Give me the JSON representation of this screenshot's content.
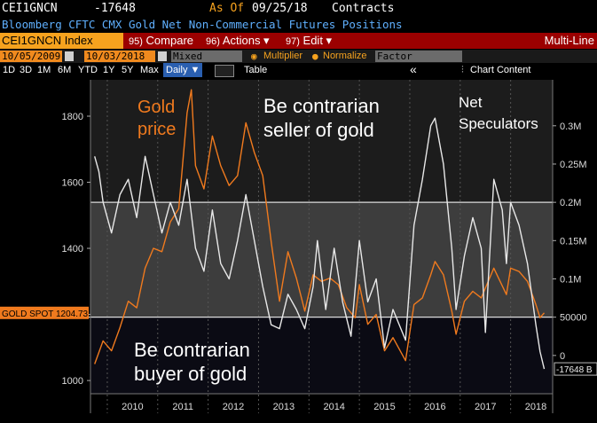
{
  "header": {
    "ticker": "CEI1GNCN",
    "last_value": "-17648",
    "as_of_label": "As Of",
    "as_of_date": "09/25/18",
    "units": "Contracts",
    "description": "Bloomberg CFTC CMX Gold Net Non-Commercial Futures Positions"
  },
  "menubar": {
    "index_label": "CEI1GNCN Index",
    "compare_num": "95)",
    "compare_label": "Compare",
    "actions_num": "96)",
    "actions_label": "Actions ▾",
    "edit_num": "97)",
    "edit_label": "Edit ▾",
    "multiline_label": "Multi-Line"
  },
  "controls": {
    "start_date": "10/05/2009",
    "end_date": "10/03/2018",
    "mode": "Mixed",
    "multiplier_label": "Multiplier",
    "normalize_label": "Normalize",
    "factor_placeholder": "Factor"
  },
  "chartbar": {
    "periods": [
      "1D",
      "3D",
      "1M",
      "6M",
      "YTD",
      "1Y",
      "5Y",
      "Max"
    ],
    "frequency": "Daily ▼",
    "table_label": "Table",
    "collapse_label": "«",
    "chart_content_label": "Chart Content"
  },
  "colors": {
    "gold_series": "#f07a1e",
    "net_spec_series": "#e8e8e8",
    "menubar_bg": "#9b0000",
    "ticker_box": "#f6a21e",
    "description_text": "#5fb0ff"
  },
  "annotations": {
    "gold_price_line1": "Gold",
    "gold_price_line2": "price",
    "seller_line1": "Be contrarian",
    "seller_line2": "seller of gold",
    "net_spec_line1": "Net",
    "net_spec_line2": "Speculators",
    "buyer_line1": "Be contrarian",
    "buyer_line2": "buyer of gold",
    "gold_spot_tag": "GOLD SPOT 1204.73",
    "net_spec_tag": "-17648 B"
  },
  "chart_data": {
    "type": "line",
    "x_ticks": [
      "2010",
      "2011",
      "2012",
      "2013",
      "2014",
      "2015",
      "2016",
      "2017",
      "2018"
    ],
    "left_axis": {
      "ticks": [
        1000,
        1200,
        1400,
        1600,
        1800
      ],
      "range": [
        960,
        1910
      ],
      "tick_labels": [
        "1000",
        "1200",
        "1400",
        "1600",
        "1800"
      ]
    },
    "right_axis": {
      "range": [
        -50000,
        360000
      ],
      "ticks": [
        0,
        50000,
        100000,
        150000,
        200000,
        250000,
        300000
      ],
      "tick_labels": [
        "0",
        "50000",
        "0.1M",
        "0.15M",
        "0.2M",
        "0.25M",
        "0.3M"
      ]
    },
    "reference_lines": {
      "upper_y_right": 200000,
      "lower_y_right": 50000
    },
    "series": [
      {
        "name": "GOLD SPOT",
        "axis": "left",
        "last_value": 1204.73,
        "points": [
          [
            "2009-10",
            1050
          ],
          [
            "2009-12",
            1120
          ],
          [
            "2010-02",
            1090
          ],
          [
            "2010-04",
            1160
          ],
          [
            "2010-06",
            1240
          ],
          [
            "2010-08",
            1220
          ],
          [
            "2010-10",
            1340
          ],
          [
            "2010-12",
            1400
          ],
          [
            "2011-02",
            1390
          ],
          [
            "2011-04",
            1480
          ],
          [
            "2011-06",
            1520
          ],
          [
            "2011-08",
            1810
          ],
          [
            "2011-09",
            1880
          ],
          [
            "2011-10",
            1650
          ],
          [
            "2011-12",
            1580
          ],
          [
            "2012-02",
            1740
          ],
          [
            "2012-04",
            1650
          ],
          [
            "2012-06",
            1590
          ],
          [
            "2012-08",
            1620
          ],
          [
            "2012-10",
            1780
          ],
          [
            "2012-12",
            1690
          ],
          [
            "2013-02",
            1620
          ],
          [
            "2013-04",
            1420
          ],
          [
            "2013-06",
            1240
          ],
          [
            "2013-08",
            1390
          ],
          [
            "2013-10",
            1310
          ],
          [
            "2013-12",
            1210
          ],
          [
            "2014-02",
            1320
          ],
          [
            "2014-04",
            1300
          ],
          [
            "2014-06",
            1310
          ],
          [
            "2014-08",
            1290
          ],
          [
            "2014-10",
            1220
          ],
          [
            "2014-12",
            1190
          ],
          [
            "2015-01",
            1290
          ],
          [
            "2015-03",
            1170
          ],
          [
            "2015-05",
            1200
          ],
          [
            "2015-07",
            1090
          ],
          [
            "2015-09",
            1130
          ],
          [
            "2015-12",
            1060
          ],
          [
            "2016-02",
            1230
          ],
          [
            "2016-04",
            1250
          ],
          [
            "2016-06",
            1320
          ],
          [
            "2016-07",
            1360
          ],
          [
            "2016-09",
            1320
          ],
          [
            "2016-11",
            1210
          ],
          [
            "2016-12",
            1140
          ],
          [
            "2017-02",
            1240
          ],
          [
            "2017-04",
            1270
          ],
          [
            "2017-06",
            1250
          ],
          [
            "2017-09",
            1340
          ],
          [
            "2017-12",
            1260
          ],
          [
            "2018-01",
            1340
          ],
          [
            "2018-03",
            1330
          ],
          [
            "2018-05",
            1300
          ],
          [
            "2018-07",
            1230
          ],
          [
            "2018-08",
            1190
          ],
          [
            "2018-09",
            1204.73
          ]
        ]
      },
      {
        "name": "Net Speculators",
        "axis": "right",
        "last_value": -17648,
        "points": [
          [
            "2009-10",
            260000
          ],
          [
            "2009-11",
            240000
          ],
          [
            "2009-12",
            200000
          ],
          [
            "2010-02",
            160000
          ],
          [
            "2010-04",
            210000
          ],
          [
            "2010-06",
            230000
          ],
          [
            "2010-08",
            180000
          ],
          [
            "2010-10",
            260000
          ],
          [
            "2010-12",
            210000
          ],
          [
            "2011-02",
            160000
          ],
          [
            "2011-04",
            200000
          ],
          [
            "2011-06",
            170000
          ],
          [
            "2011-08",
            230000
          ],
          [
            "2011-10",
            140000
          ],
          [
            "2011-12",
            110000
          ],
          [
            "2012-02",
            190000
          ],
          [
            "2012-04",
            120000
          ],
          [
            "2012-06",
            100000
          ],
          [
            "2012-08",
            150000
          ],
          [
            "2012-10",
            210000
          ],
          [
            "2012-12",
            150000
          ],
          [
            "2013-02",
            90000
          ],
          [
            "2013-04",
            40000
          ],
          [
            "2013-06",
            35000
          ],
          [
            "2013-08",
            80000
          ],
          [
            "2013-10",
            60000
          ],
          [
            "2013-12",
            35000
          ],
          [
            "2014-02",
            90000
          ],
          [
            "2014-03",
            150000
          ],
          [
            "2014-05",
            60000
          ],
          [
            "2014-07",
            140000
          ],
          [
            "2014-09",
            70000
          ],
          [
            "2014-11",
            25000
          ],
          [
            "2015-01",
            150000
          ],
          [
            "2015-03",
            70000
          ],
          [
            "2015-05",
            100000
          ],
          [
            "2015-07",
            10000
          ],
          [
            "2015-09",
            60000
          ],
          [
            "2015-12",
            20000
          ],
          [
            "2016-02",
            170000
          ],
          [
            "2016-04",
            230000
          ],
          [
            "2016-06",
            300000
          ],
          [
            "2016-07",
            310000
          ],
          [
            "2016-09",
            250000
          ],
          [
            "2016-11",
            140000
          ],
          [
            "2016-12",
            60000
          ],
          [
            "2017-02",
            130000
          ],
          [
            "2017-04",
            180000
          ],
          [
            "2017-06",
            140000
          ],
          [
            "2017-07",
            30000
          ],
          [
            "2017-09",
            230000
          ],
          [
            "2017-11",
            190000
          ],
          [
            "2017-12",
            120000
          ],
          [
            "2018-01",
            200000
          ],
          [
            "2018-03",
            170000
          ],
          [
            "2018-05",
            120000
          ],
          [
            "2018-07",
            40000
          ],
          [
            "2018-08",
            5000
          ],
          [
            "2018-09",
            -17648
          ]
        ]
      }
    ]
  }
}
